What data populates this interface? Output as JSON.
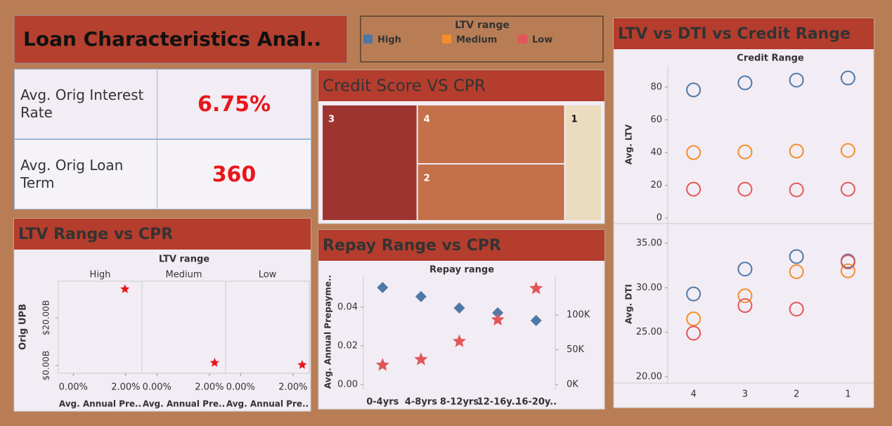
{
  "header": {
    "title": "Loan Characteristics Anal.."
  },
  "legend": {
    "title": "LTV range",
    "items": [
      {
        "label": "High",
        "color": "#4e79a7"
      },
      {
        "label": "Medium",
        "color": "#f28e2b"
      },
      {
        "label": "Low",
        "color": "#e15759"
      }
    ]
  },
  "kpis": [
    {
      "label": "Avg. Orig Interest Rate",
      "value": "6.75%"
    },
    {
      "label": "Avg. Orig Loan Term",
      "value": "360"
    }
  ],
  "chart_data": [
    {
      "type": "treemap",
      "title": "Credit Score VS CPR",
      "categories": [
        "3",
        "4",
        "2",
        "1"
      ],
      "values": [
        34,
        27,
        26,
        13
      ],
      "colors": [
        "#9e3430",
        "#c4704a",
        "#c4704a",
        "#ecdcbf"
      ]
    },
    {
      "type": "faceted-scatter",
      "title": "LTV Range vs CPR",
      "facet_title": "LTV range",
      "facets": [
        "High",
        "Medium",
        "Low"
      ],
      "x_label": "Avg. Annual Pre..",
      "y_label": "Orig UPB",
      "x": [
        1.97,
        2.2,
        2.35
      ],
      "values": [
        32,
        1.2,
        0.3
      ],
      "color": "#e8161b",
      "xlim": [
        -0.57,
        2.62
      ],
      "xticks": [
        {
          "value": 0,
          "label": "0.00%"
        },
        {
          "value": 2,
          "label": "2.00%"
        }
      ],
      "ylim": [
        -3.2,
        35.3
      ],
      "yticks": [
        {
          "value": 0,
          "label": "$0.00B"
        },
        {
          "value": 20,
          "label": "$20.00B"
        }
      ]
    },
    {
      "type": "dot-plot",
      "title": "Repay Range vs CPR",
      "x_title": "Repay range",
      "y_label": "Avg. Annual Prepayme..",
      "categories": [
        "0-4yrs",
        "4-8yrs",
        "8-12yrs",
        "12-16y..",
        "16-20y.."
      ],
      "series": [
        {
          "color": "#4e79a7",
          "marker": "diamond",
          "values": [
            0.0502,
            0.0455,
            0.0396,
            0.0371,
            0.0331
          ]
        },
        {
          "color": "#e15759",
          "marker": "star",
          "axis": "y2",
          "values": [
            28000,
            36000,
            62000,
            93000,
            138000
          ]
        }
      ],
      "ylim": [
        -0.0029,
        0.056
      ],
      "yticks": [
        {
          "value": 0,
          "label": "0.00"
        },
        {
          "value": 0.02,
          "label": "0.02"
        },
        {
          "value": 0.04,
          "label": "0.04"
        }
      ],
      "y2lim": [
        -8080,
        155560
      ],
      "y2ticks": [
        {
          "value": 0,
          "label": "0K"
        },
        {
          "value": 50000,
          "label": "50K"
        },
        {
          "value": 100000,
          "label": "100K"
        }
      ]
    },
    {
      "type": "panel-scatter",
      "title": "LTV vs DTI vs Credit Range",
      "x_title": "Credit Range",
      "categories": [
        "4",
        "3",
        "2",
        "1"
      ],
      "panels": [
        {
          "y_label": "Avg. LTV",
          "ylim": [
            -3.4,
            93.3
          ],
          "yticks": [
            0,
            20,
            40,
            60,
            80
          ],
          "series": [
            {
              "color": "#4e79a7",
              "values": [
                78.3,
                82.6,
                84.3,
                85.6
              ]
            },
            {
              "color": "#f28e2b",
              "values": [
                40,
                40.4,
                40.9,
                41.3
              ]
            },
            {
              "color": "#e15759",
              "values": [
                17.6,
                17.6,
                17.2,
                17.6
              ]
            }
          ]
        },
        {
          "y_label": "Avg. DTI",
          "ylim": [
            19.29,
            37.05
          ],
          "yticks": [
            {
              "value": 20,
              "label": "20.00"
            },
            {
              "value": 25,
              "label": "25.00"
            },
            {
              "value": 30,
              "label": "30.00"
            },
            {
              "value": 35,
              "label": "35.00"
            }
          ],
          "series": [
            {
              "color": "#4e79a7",
              "values": [
                29.3,
                32.1,
                33.5,
                33.0
              ]
            },
            {
              "color": "#f28e2b",
              "values": [
                26.5,
                29.1,
                31.8,
                31.9
              ]
            },
            {
              "color": "#e15759",
              "values": [
                24.9,
                28.0,
                27.6,
                32.9
              ]
            }
          ]
        }
      ]
    }
  ]
}
